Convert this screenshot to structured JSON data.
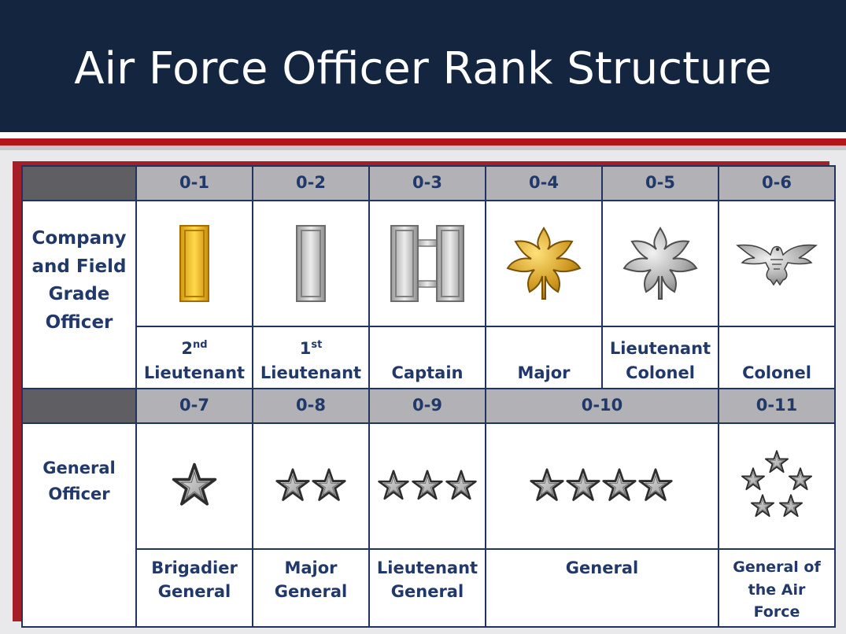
{
  "title": "Air Force Officer Rank Structure",
  "colors": {
    "header": "#13253f",
    "accent_red": "#b3151d",
    "text": "#21386a",
    "header_cell": "#b2b2b6",
    "corner_cell": "#5e5e63"
  },
  "groups": {
    "company_field": "Company and Field Grade Officer",
    "general": "General Officer"
  },
  "row1": {
    "codes": [
      "0-1",
      "0-2",
      "0-3",
      "0-4",
      "0-5",
      "0-6"
    ],
    "ranks": [
      {
        "pre": "2",
        "sup": "nd",
        "main": "Lieutenant",
        "icon": "gold-bar-icon"
      },
      {
        "pre": "1",
        "sup": "st",
        "main": "Lieutenant",
        "icon": "silver-bar-icon"
      },
      {
        "line1": "",
        "line2": "Captain",
        "icon": "double-silver-bar-icon"
      },
      {
        "line1": "",
        "line2": "Major",
        "icon": "gold-oak-leaf-icon"
      },
      {
        "line1": "Lieutenant",
        "line2": "Colonel",
        "icon": "silver-oak-leaf-icon"
      },
      {
        "line1": "",
        "line2": "Colonel",
        "icon": "eagle-icon"
      }
    ]
  },
  "row2": {
    "codes": [
      "0-7",
      "0-8",
      "0-9",
      "0-10",
      "0-11"
    ],
    "ranks": [
      {
        "line1": "Brigadier",
        "line2": "General",
        "icon": "one-star-icon"
      },
      {
        "line1": "Major",
        "line2": "General",
        "icon": "two-star-icon"
      },
      {
        "line1": "Lieutenant",
        "line2": "General",
        "icon": "three-star-icon"
      },
      {
        "line1": "General",
        "line2": "",
        "icon": "four-star-icon"
      },
      {
        "line1": "General of",
        "line2": "the Air",
        "line3": "Force",
        "icon": "five-star-icon"
      }
    ]
  }
}
